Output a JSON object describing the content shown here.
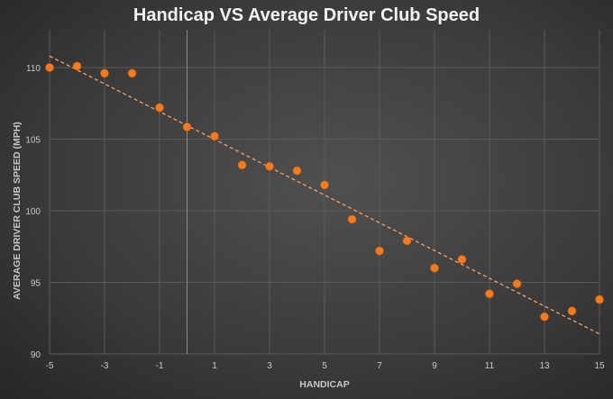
{
  "chart_data": {
    "type": "scatter",
    "title": "Handicap VS Average Driver Club Speed",
    "xlabel": "HANDICAP",
    "ylabel": "AVERAGE DRIVER CLUB SPEED (MPH)",
    "xlim": [
      -5,
      15
    ],
    "ylim": [
      90,
      112
    ],
    "xticks": [
      -5,
      -3,
      -1,
      1,
      3,
      5,
      7,
      9,
      11,
      13,
      15
    ],
    "yticks": [
      90,
      95,
      100,
      105,
      110
    ],
    "grid": true,
    "point_color": "#f47b20",
    "trend_color": "#f2a56a",
    "series": [
      {
        "name": "Average Driver Club Speed",
        "x": [
          -5,
          -4,
          -3,
          -2,
          -1,
          0,
          1,
          2,
          3,
          4,
          5,
          6,
          7,
          8,
          9,
          10,
          11,
          12,
          13,
          14,
          15
        ],
        "y": [
          110.0,
          110.1,
          109.6,
          109.6,
          107.2,
          105.85,
          105.2,
          103.2,
          103.1,
          102.8,
          101.8,
          99.4,
          97.2,
          97.9,
          96.0,
          96.6,
          94.2,
          94.9,
          92.6,
          93.0,
          93.8
        ]
      }
    ],
    "trendline": {
      "type": "linear",
      "x": [
        -5,
        15
      ],
      "y": [
        110.8,
        91.4
      ]
    }
  }
}
